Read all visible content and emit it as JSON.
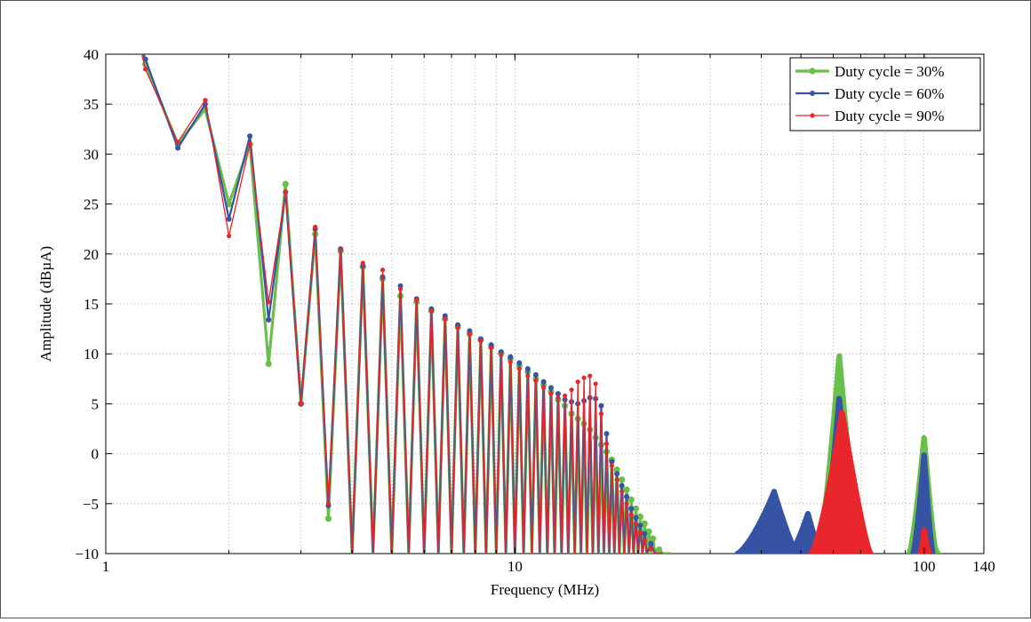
{
  "chart_data": {
    "type": "line",
    "xlabel": "Frequency (MHz)",
    "ylabel": "Amplitude (dBµA)",
    "xscale": "log",
    "xlim": [
      1,
      140
    ],
    "ylim": [
      -10,
      40
    ],
    "xticks": [
      "1",
      "10",
      "100",
      "140"
    ],
    "yticks": [
      "−10",
      "−5",
      "0",
      "5",
      "10",
      "15",
      "20",
      "25",
      "30",
      "35",
      "40"
    ],
    "grid": true,
    "legend_position": "top-right",
    "series": [
      {
        "name": "Duty cycle = 30%",
        "color": "#6abf4b",
        "points": [
          [
            1.2,
            41.5
          ],
          [
            1.25,
            39
          ],
          [
            1.5,
            31
          ],
          [
            1.75,
            34.5
          ],
          [
            2.0,
            25
          ],
          [
            2.25,
            31
          ],
          [
            2.5,
            9
          ],
          [
            2.75,
            27
          ],
          [
            3.0,
            5
          ],
          [
            3.25,
            22
          ],
          [
            3.5,
            -6.5
          ],
          [
            3.75,
            20.3
          ],
          [
            4.0,
            -10
          ],
          [
            4.25,
            18.7
          ],
          [
            4.5,
            -10
          ],
          [
            4.75,
            17.5
          ],
          [
            5.0,
            -10
          ],
          [
            5.25,
            15.8
          ],
          [
            5.5,
            -10
          ],
          [
            5.75,
            15.2
          ],
          [
            6.0,
            -10
          ],
          [
            6.25,
            14.3
          ],
          [
            6.5,
            -10
          ],
          [
            6.75,
            13.5
          ],
          [
            7.0,
            -10
          ],
          [
            7.25,
            12.7
          ],
          [
            7.5,
            -10
          ],
          [
            7.75,
            12.0
          ],
          [
            8.0,
            -10
          ],
          [
            8.25,
            11.4
          ],
          [
            8.5,
            -10
          ],
          [
            8.75,
            10.7
          ],
          [
            9.0,
            -10
          ],
          [
            9.25,
            10.1
          ],
          [
            9.5,
            -10
          ],
          [
            9.75,
            9.5
          ],
          [
            10.0,
            -10
          ],
          [
            10.25,
            8.8
          ],
          [
            10.5,
            -10
          ],
          [
            10.75,
            8.2
          ],
          [
            11.0,
            -10
          ],
          [
            11.25,
            7.5
          ],
          [
            11.5,
            -10
          ],
          [
            11.75,
            6.9
          ],
          [
            12.0,
            -10
          ],
          [
            12.25,
            6.2
          ],
          [
            12.5,
            -10
          ],
          [
            12.75,
            5.4
          ],
          [
            13.0,
            -10
          ],
          [
            13.25,
            4.8
          ],
          [
            13.5,
            -10
          ],
          [
            13.75,
            4.0
          ],
          [
            14.0,
            -10
          ],
          [
            14.25,
            3.5
          ],
          [
            14.5,
            -10
          ],
          [
            14.75,
            3.0
          ],
          [
            15.0,
            -10
          ],
          [
            15.25,
            2.4
          ],
          [
            15.5,
            -10
          ],
          [
            15.75,
            1.6
          ],
          [
            16.0,
            -10
          ],
          [
            16.25,
            0.9
          ],
          [
            16.5,
            -10
          ],
          [
            16.75,
            0.2
          ],
          [
            17.0,
            -10
          ],
          [
            17.25,
            -0.6
          ],
          [
            17.5,
            -10
          ],
          [
            17.75,
            -1.6
          ],
          [
            18.0,
            -10
          ],
          [
            18.25,
            -2.6
          ],
          [
            18.5,
            -10
          ],
          [
            18.75,
            -3.6
          ],
          [
            19.0,
            -10
          ],
          [
            19.25,
            -4.6
          ],
          [
            19.5,
            -10
          ],
          [
            19.75,
            -5.5
          ],
          [
            20.0,
            -10
          ],
          [
            20.25,
            -6.3
          ],
          [
            20.5,
            -10
          ],
          [
            20.75,
            -7.0
          ],
          [
            21.0,
            -10
          ],
          [
            21.25,
            -7.8
          ],
          [
            21.5,
            -10
          ],
          [
            21.75,
            -8.5
          ],
          [
            22.0,
            -10
          ],
          [
            22.5,
            -9.6
          ],
          [
            23.0,
            -10
          ],
          [
            24.0,
            -10
          ]
        ],
        "humps": [
          [
            55,
            62,
            70,
            -10,
            10
          ],
          [
            92,
            100,
            107,
            -10,
            1.7
          ],
          [
            100,
            105,
            108,
            -10,
            -8.9
          ]
        ]
      },
      {
        "name": "Duty cycle = 60%",
        "color": "#3653a4",
        "points": [
          [
            1.2,
            41.5
          ],
          [
            1.25,
            39.5
          ],
          [
            1.5,
            30.6
          ],
          [
            1.75,
            35
          ],
          [
            2.0,
            23.5
          ],
          [
            2.25,
            31.8
          ],
          [
            2.5,
            13.4
          ],
          [
            2.75,
            26.2
          ],
          [
            3.0,
            5
          ],
          [
            3.25,
            22.5
          ],
          [
            3.5,
            -5.2
          ],
          [
            3.75,
            20.5
          ],
          [
            4.0,
            -10
          ],
          [
            4.25,
            18.8
          ],
          [
            4.5,
            -10
          ],
          [
            4.75,
            17.7
          ],
          [
            5.0,
            -10
          ],
          [
            5.25,
            16.8
          ],
          [
            5.5,
            -10
          ],
          [
            5.75,
            15.5
          ],
          [
            6.0,
            -10
          ],
          [
            6.25,
            14.5
          ],
          [
            6.5,
            -10
          ],
          [
            6.75,
            13.8
          ],
          [
            7.0,
            -10
          ],
          [
            7.25,
            12.9
          ],
          [
            7.5,
            -10
          ],
          [
            7.75,
            12.3
          ],
          [
            8.0,
            -10
          ],
          [
            8.25,
            11.5
          ],
          [
            8.5,
            -10
          ],
          [
            8.75,
            10.9
          ],
          [
            9.0,
            -10
          ],
          [
            9.25,
            10.2
          ],
          [
            9.5,
            -10
          ],
          [
            9.75,
            9.7
          ],
          [
            10.0,
            -10
          ],
          [
            10.25,
            9.1
          ],
          [
            10.5,
            -10
          ],
          [
            10.75,
            8.5
          ],
          [
            11.0,
            -10
          ],
          [
            11.25,
            7.9
          ],
          [
            11.5,
            -10
          ],
          [
            11.75,
            7.2
          ],
          [
            12.0,
            -10
          ],
          [
            12.25,
            6.6
          ],
          [
            12.5,
            -10
          ],
          [
            12.75,
            6.0
          ],
          [
            13.0,
            -10
          ],
          [
            13.25,
            5.4
          ],
          [
            13.5,
            -10
          ],
          [
            13.75,
            5.2
          ],
          [
            14.0,
            -10
          ],
          [
            14.25,
            5.0
          ],
          [
            14.5,
            -10
          ],
          [
            14.75,
            5.3
          ],
          [
            15.0,
            -10
          ],
          [
            15.25,
            5.6
          ],
          [
            15.5,
            -10
          ],
          [
            15.75,
            5.5
          ],
          [
            16.0,
            -10
          ],
          [
            16.25,
            4.8
          ],
          [
            16.5,
            -10
          ],
          [
            16.75,
            2.0
          ],
          [
            17.0,
            -10
          ],
          [
            17.25,
            -0.8
          ],
          [
            17.5,
            -10
          ],
          [
            17.75,
            -2.0
          ],
          [
            18.0,
            -10
          ],
          [
            18.25,
            -3.2
          ],
          [
            18.5,
            -10
          ],
          [
            18.75,
            -4.3
          ],
          [
            19.0,
            -10
          ],
          [
            19.25,
            -5.5
          ],
          [
            19.5,
            -10
          ],
          [
            19.75,
            -6.4
          ],
          [
            20.0,
            -10
          ],
          [
            20.25,
            -7.2
          ],
          [
            20.5,
            -10
          ],
          [
            20.75,
            -8.0
          ],
          [
            21.0,
            -10
          ],
          [
            21.5,
            -9.0
          ],
          [
            22.0,
            -10
          ],
          [
            23.0,
            -10
          ]
        ],
        "humps": [
          [
            35,
            43,
            49,
            -10,
            -3.8
          ],
          [
            47,
            52,
            56,
            -10,
            -6.0
          ],
          [
            56,
            62,
            69,
            -10,
            5.7
          ],
          [
            94,
            100,
            105,
            -10,
            -0.1
          ]
        ]
      },
      {
        "name": "Duty cycle = 90%",
        "color": "#e8262b",
        "points": [
          [
            1.2,
            41.5
          ],
          [
            1.25,
            38.5
          ],
          [
            1.5,
            31.2
          ],
          [
            1.75,
            35.4
          ],
          [
            2.0,
            21.8
          ],
          [
            2.25,
            31
          ],
          [
            2.5,
            15.2
          ],
          [
            2.75,
            26.2
          ],
          [
            3.0,
            5
          ],
          [
            3.25,
            22.7
          ],
          [
            3.5,
            -5
          ],
          [
            3.75,
            20.4
          ],
          [
            4.0,
            -10
          ],
          [
            4.25,
            19.1
          ],
          [
            4.5,
            -10
          ],
          [
            4.75,
            18.4
          ],
          [
            5.0,
            -10
          ],
          [
            5.25,
            16.5
          ],
          [
            5.5,
            -10
          ],
          [
            5.75,
            15.4
          ],
          [
            6.0,
            -10
          ],
          [
            6.25,
            14.3
          ],
          [
            6.5,
            -10
          ],
          [
            6.75,
            13.5
          ],
          [
            7.0,
            -10
          ],
          [
            7.25,
            12.6
          ],
          [
            7.5,
            -10
          ],
          [
            7.75,
            12.0
          ],
          [
            8.0,
            -10
          ],
          [
            8.25,
            11.3
          ],
          [
            8.5,
            -10
          ],
          [
            8.75,
            10.6
          ],
          [
            9.0,
            -10
          ],
          [
            9.25,
            9.9
          ],
          [
            9.5,
            -10
          ],
          [
            9.75,
            9.2
          ],
          [
            10.0,
            -10
          ],
          [
            10.25,
            8.5
          ],
          [
            10.5,
            -10
          ],
          [
            10.75,
            7.8
          ],
          [
            11.0,
            -10
          ],
          [
            11.25,
            7.3
          ],
          [
            11.5,
            -10
          ],
          [
            11.75,
            6.6
          ],
          [
            12.0,
            -10
          ],
          [
            12.25,
            6.0
          ],
          [
            12.5,
            -10
          ],
          [
            12.75,
            5.6
          ],
          [
            13.0,
            -10
          ],
          [
            13.25,
            5.8
          ],
          [
            13.5,
            -10
          ],
          [
            13.75,
            6.4
          ],
          [
            14.0,
            -10
          ],
          [
            14.25,
            7.2
          ],
          [
            14.5,
            -10
          ],
          [
            14.75,
            7.6
          ],
          [
            15.0,
            -10
          ],
          [
            15.25,
            7.8
          ],
          [
            15.5,
            -10
          ],
          [
            15.75,
            7.0
          ],
          [
            16.0,
            -10
          ],
          [
            16.25,
            4.0
          ],
          [
            16.5,
            -10
          ],
          [
            16.75,
            1.0
          ],
          [
            17.0,
            -10
          ],
          [
            17.25,
            -1.2
          ],
          [
            17.5,
            -10
          ],
          [
            17.75,
            -2.6
          ],
          [
            18.0,
            -10
          ],
          [
            18.25,
            -3.8
          ],
          [
            18.5,
            -10
          ],
          [
            18.75,
            -5.0
          ],
          [
            19.0,
            -10
          ],
          [
            19.25,
            -6.1
          ],
          [
            19.5,
            -10
          ],
          [
            19.75,
            -7.0
          ],
          [
            20.0,
            -10
          ],
          [
            20.25,
            -7.9
          ],
          [
            20.5,
            -10
          ],
          [
            20.75,
            -8.7
          ],
          [
            21.0,
            -10
          ],
          [
            21.5,
            -9.5
          ],
          [
            22.0,
            -10
          ],
          [
            23.0,
            -10
          ]
        ],
        "humps": [
          [
            53,
            63,
            74,
            -10,
            4.3
          ],
          [
            98,
            100,
            103,
            -10,
            -7.7
          ]
        ]
      }
    ]
  }
}
